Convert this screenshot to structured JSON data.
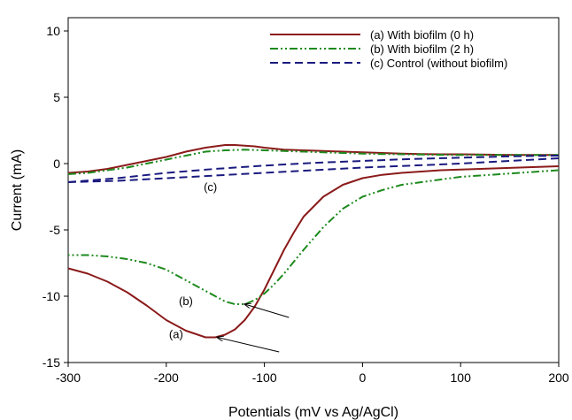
{
  "chart_data": {
    "type": "line",
    "xlabel": "Potentials (mV vs Ag/AgCl)",
    "ylabel": "Current (mA)",
    "xlim": [
      -300,
      200
    ],
    "ylim": [
      -15,
      11
    ],
    "xticks": [
      -300,
      -200,
      -100,
      0,
      100,
      200
    ],
    "yticks": [
      -15,
      -10,
      -5,
      0,
      5,
      10
    ],
    "grid": false,
    "legend_position": "top-right",
    "series": [
      {
        "name": "(a) With biofilm (0 h)",
        "color": "#8b1a1a",
        "dash": "solid",
        "segments": [
          {
            "x": [
              -300,
              -280,
              -260,
              -240,
              -220,
              -200,
              -180,
              -160,
              -140,
              -130,
              -120,
              -110,
              -100,
              -80,
              -60,
              -40,
              -20,
              0,
              20,
              40,
              60,
              80,
              100,
              120,
              140,
              160,
              180,
              200
            ],
            "y": [
              -0.7,
              -0.6,
              -0.4,
              -0.1,
              0.2,
              0.5,
              0.9,
              1.2,
              1.4,
              1.4,
              1.35,
              1.3,
              1.2,
              1.05,
              1.0,
              0.95,
              0.9,
              0.85,
              0.8,
              0.75,
              0.72,
              0.7,
              0.7,
              0.68,
              0.66,
              0.65,
              0.65,
              0.65
            ]
          },
          {
            "x": [
              200,
              180,
              160,
              140,
              120,
              100,
              80,
              60,
              40,
              20,
              0,
              -20,
              -40,
              -60,
              -70,
              -80,
              -90,
              -100,
              -110,
              -120,
              -130,
              -140,
              -150,
              -160,
              -180,
              -200,
              -220,
              -240,
              -260,
              -280,
              -300
            ],
            "y": [
              -0.2,
              -0.25,
              -0.3,
              -0.35,
              -0.4,
              -0.45,
              -0.5,
              -0.6,
              -0.7,
              -0.85,
              -1.1,
              -1.6,
              -2.5,
              -4.0,
              -5.2,
              -6.5,
              -8.0,
              -9.5,
              -10.8,
              -11.8,
              -12.5,
              -12.9,
              -13.1,
              -13.1,
              -12.6,
              -11.8,
              -10.7,
              -9.7,
              -8.9,
              -8.3,
              -7.9
            ]
          }
        ]
      },
      {
        "name": "(b) With biofilm (2 h)",
        "color": "#1e8a1e",
        "dash": "dash-dot-dot",
        "segments": [
          {
            "x": [
              -300,
              -280,
              -260,
              -240,
              -220,
              -200,
              -180,
              -160,
              -140,
              -120,
              -100,
              -80,
              -60,
              -40,
              -20,
              0,
              20,
              40,
              60,
              80,
              100,
              120,
              140,
              160,
              180,
              200
            ],
            "y": [
              -0.8,
              -0.7,
              -0.5,
              -0.3,
              0.0,
              0.3,
              0.6,
              0.9,
              1.0,
              1.05,
              1.0,
              0.95,
              0.9,
              0.85,
              0.8,
              0.75,
              0.72,
              0.7,
              0.68,
              0.66,
              0.65,
              0.65,
              0.65,
              0.65,
              0.65,
              0.65
            ]
          },
          {
            "x": [
              200,
              180,
              160,
              140,
              120,
              100,
              80,
              60,
              40,
              20,
              0,
              -20,
              -40,
              -60,
              -80,
              -90,
              -100,
              -110,
              -120,
              -130,
              -140,
              -150,
              -160,
              -180,
              -200,
              -220,
              -240,
              -260,
              -280,
              -300
            ],
            "y": [
              -0.5,
              -0.6,
              -0.7,
              -0.8,
              -0.9,
              -1.0,
              -1.2,
              -1.4,
              -1.6,
              -2.0,
              -2.5,
              -3.4,
              -4.8,
              -6.5,
              -8.3,
              -9.1,
              -9.8,
              -10.3,
              -10.6,
              -10.6,
              -10.4,
              -10.0,
              -9.6,
              -8.8,
              -8.0,
              -7.5,
              -7.2,
              -7.0,
              -6.9,
              -6.9
            ]
          }
        ]
      },
      {
        "name": "(c) Control (without biofilm)",
        "color": "#1a1a80",
        "dash": "dashed",
        "segments": [
          {
            "x": [
              -300,
              -250,
              -200,
              -150,
              -100,
              -50,
              0,
              50,
              100,
              150,
              200
            ],
            "y": [
              -1.4,
              -1.1,
              -0.7,
              -0.4,
              -0.15,
              0.05,
              0.2,
              0.35,
              0.45,
              0.55,
              0.6
            ]
          },
          {
            "x": [
              200,
              150,
              100,
              50,
              0,
              -50,
              -100,
              -150,
              -200,
              -250,
              -300
            ],
            "y": [
              0.4,
              0.2,
              0.0,
              -0.15,
              -0.3,
              -0.5,
              -0.7,
              -0.9,
              -1.1,
              -1.3,
              -1.4
            ]
          }
        ]
      }
    ],
    "annotations": [
      {
        "text": "(a)",
        "x": -190,
        "y": -12.9,
        "arrow_from": [
          -85,
          -14.2
        ],
        "arrow_to": [
          -148,
          -13.1
        ]
      },
      {
        "text": "(b)",
        "x": -180,
        "y": -10.4,
        "arrow_from": [
          -75,
          -11.6
        ],
        "arrow_to": [
          -120,
          -10.6
        ]
      },
      {
        "text": "(c)",
        "x": -155,
        "y": -1.8
      }
    ]
  }
}
